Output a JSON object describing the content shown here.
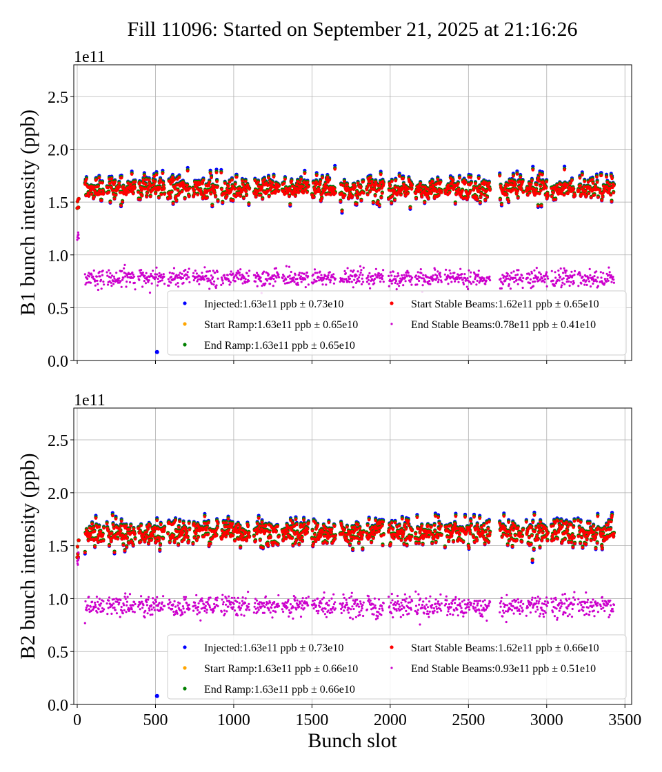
{
  "chart_data": {
    "type": "scatter",
    "title": "Fill 11096: Started on September 21, 2025 at 21:16:26",
    "xlabel": "Bunch slot",
    "xlim": [
      -22,
      3543
    ],
    "xticks": [
      0,
      500,
      1000,
      1500,
      2000,
      2500,
      3000,
      3500
    ],
    "grid": true,
    "legend_placement": "lower-right",
    "bunch_trains": [
      [
        50,
        170
      ],
      [
        190,
        370
      ],
      [
        390,
        560
      ],
      [
        580,
        720
      ],
      [
        740,
        900
      ],
      [
        920,
        1100
      ],
      [
        1130,
        1290
      ],
      [
        1310,
        1480
      ],
      [
        1500,
        1650
      ],
      [
        1680,
        1830
      ],
      [
        1850,
        1960
      ],
      [
        1990,
        2140
      ],
      [
        2160,
        2330
      ],
      [
        2350,
        2520
      ],
      [
        2530,
        2640
      ],
      [
        2700,
        2850
      ],
      [
        2870,
        3010
      ],
      [
        3030,
        3180
      ],
      [
        3200,
        3330
      ],
      [
        3340,
        3430
      ]
    ],
    "pilot_bunch_slots": [
      0,
      10
    ],
    "outlier_injected": {
      "bunch_slot": 510,
      "value": 0.08
    },
    "panels": [
      {
        "ylabel": "B1 bunch intensity (ppb)",
        "offset_label": "1e11",
        "ylim": [
          0,
          2.8
        ],
        "yticks": [
          "0.0",
          "0.5",
          "1.0",
          "1.5",
          "2.0",
          "2.5"
        ],
        "series": [
          {
            "name": "Injected:1.63e11 ppb ± 0.73e10",
            "color": "#0000ff",
            "mean": 1.63,
            "std": 0.073
          },
          {
            "name": "Start Ramp:1.63e11 ppb ± 0.65e10",
            "color": "#ffa500",
            "mean": 1.63,
            "std": 0.065
          },
          {
            "name": "End Ramp:1.63e11 ppb ± 0.65e10",
            "color": "#008000",
            "mean": 1.63,
            "std": 0.065
          },
          {
            "name": "Start Stable Beams:1.62e11 ppb ± 0.65e10",
            "color": "#ff0000",
            "mean": 1.62,
            "std": 0.065
          },
          {
            "name": "End Stable Beams:0.78e11 ppb ± 0.41e10",
            "color": "#cc00cc",
            "mean": 0.78,
            "std": 0.041
          }
        ]
      },
      {
        "ylabel": "B2 bunch intensity (ppb)",
        "offset_label": "1e11",
        "ylim": [
          0,
          2.8
        ],
        "yticks": [
          "0.0",
          "0.5",
          "1.0",
          "1.5",
          "2.0",
          "2.5"
        ],
        "series": [
          {
            "name": "Injected:1.63e11 ppb ± 0.73e10",
            "color": "#0000ff",
            "mean": 1.63,
            "std": 0.073
          },
          {
            "name": "Start Ramp:1.63e11 ppb ± 0.66e10",
            "color": "#ffa500",
            "mean": 1.63,
            "std": 0.066
          },
          {
            "name": "End Ramp:1.63e11 ppb ± 0.66e10",
            "color": "#008000",
            "mean": 1.63,
            "std": 0.066
          },
          {
            "name": "Start Stable Beams:1.62e11 ppb ± 0.66e10",
            "color": "#ff0000",
            "mean": 1.62,
            "std": 0.066
          },
          {
            "name": "End Stable Beams:0.93e11 ppb ± 0.51e10",
            "color": "#cc00cc",
            "mean": 0.93,
            "std": 0.051
          }
        ]
      }
    ]
  }
}
